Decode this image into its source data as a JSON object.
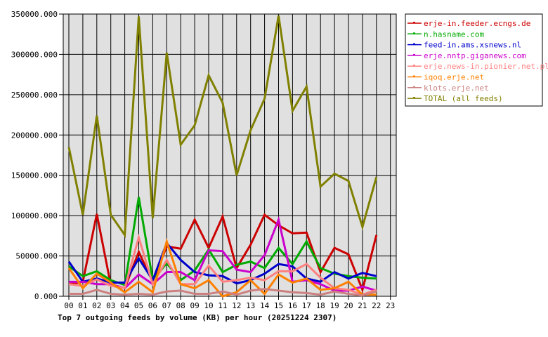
{
  "chart_data": {
    "type": "line",
    "title": "Top 7 outgoing feeds by volume (KB) per hour (20251224 2307)",
    "xlabel": "",
    "ylabel": "",
    "ylim": [
      0,
      350000
    ],
    "grid": true,
    "legend_position": "right",
    "x": [
      "00",
      "01",
      "02",
      "03",
      "04",
      "05",
      "06",
      "07",
      "08",
      "09",
      "10",
      "11",
      "12",
      "13",
      "14",
      "15",
      "16",
      "17",
      "18",
      "19",
      "20",
      "21",
      "22",
      "23"
    ],
    "y_ticks": [
      "0.000",
      "50000.000",
      "100000.000",
      "150000.000",
      "200000.000",
      "250000.000",
      "300000.000",
      "350000.000"
    ],
    "series": [
      {
        "name": "erje-in.feeder.ecngs.de",
        "color": "#cc0000",
        "values": [
          15000,
          18000,
          102000,
          14000,
          10000,
          55000,
          18000,
          62000,
          59000,
          95000,
          60000,
          99000,
          35000,
          64000,
          101000,
          88000,
          78000,
          79000,
          30000,
          60000,
          52000,
          8000,
          76000
        ]
      },
      {
        "name": "n.hasname.com",
        "color": "#00aa00",
        "values": [
          37000,
          25000,
          31000,
          20000,
          14000,
          123000,
          20000,
          41000,
          20000,
          32000,
          58000,
          30000,
          39000,
          43000,
          35000,
          60000,
          40000,
          68000,
          35000,
          28000,
          25000,
          23000,
          22000
        ]
      },
      {
        "name": "feed-in.ams.xsnews.nl",
        "color": "#0000cc",
        "values": [
          43000,
          18000,
          22000,
          17000,
          17000,
          47000,
          20000,
          66000,
          45000,
          30000,
          26000,
          25000,
          16000,
          20000,
          28000,
          40000,
          37000,
          22000,
          18000,
          30000,
          22000,
          29000,
          25000
        ]
      },
      {
        "name": "erje.nntp.giganews.com",
        "color": "#cc00cc",
        "values": [
          18000,
          18000,
          15000,
          15000,
          10000,
          27000,
          15000,
          30000,
          30000,
          20000,
          57000,
          56000,
          33000,
          30000,
          51000,
          95000,
          18000,
          20000,
          15000,
          7000,
          7000,
          12000,
          7000
        ]
      },
      {
        "name": "erje.news-in.pionier.net.pl",
        "color": "#ff8080",
        "values": [
          15000,
          13000,
          21000,
          13000,
          10000,
          73000,
          15000,
          45000,
          15000,
          15000,
          38000,
          18000,
          20000,
          23000,
          20000,
          31000,
          31000,
          40000,
          23000,
          10000,
          8000,
          2000,
          8000
        ]
      },
      {
        "name": "iqoq.erje.net",
        "color": "#ff8000",
        "values": [
          35000,
          10000,
          28000,
          17000,
          5000,
          18000,
          5000,
          68000,
          15000,
          10000,
          20000,
          0,
          5000,
          20000,
          3000,
          27000,
          17000,
          22000,
          8000,
          10000,
          18000,
          2000,
          2000
        ]
      },
      {
        "name": "klots.erje.net",
        "color": "#cc8080",
        "values": [
          3000,
          3000,
          8000,
          3000,
          2000,
          3000,
          2000,
          6000,
          7000,
          3000,
          3000,
          6000,
          2000,
          7000,
          9000,
          7000,
          5000,
          4000,
          2000,
          6000,
          3000,
          1000,
          6000
        ]
      },
      {
        "name": "TOTAL (all feeds)",
        "color": "#808000",
        "values": [
          185000,
          101000,
          224000,
          101000,
          76000,
          347000,
          97000,
          302000,
          188000,
          212000,
          274000,
          240000,
          150000,
          206000,
          245000,
          348000,
          230000,
          260000,
          136000,
          152000,
          143000,
          86000,
          148000
        ]
      }
    ]
  }
}
